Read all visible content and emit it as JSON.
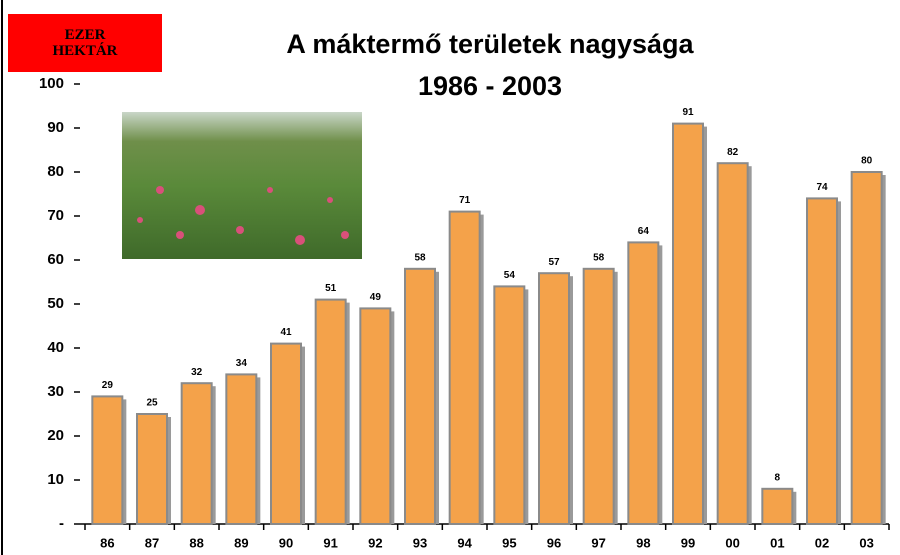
{
  "chart_data": {
    "type": "bar",
    "title": "A máktermő területek nagysága",
    "subtitle": "1986 - 2003",
    "ylabel": "EZER HEKTÁR",
    "categories": [
      "86",
      "87",
      "88",
      "89",
      "90",
      "91",
      "92",
      "93",
      "94",
      "95",
      "96",
      "97",
      "98",
      "99",
      "00",
      "01",
      "02",
      "03"
    ],
    "values": [
      29,
      25,
      32,
      34,
      41,
      51,
      49,
      58,
      71,
      54,
      57,
      58,
      64,
      91,
      82,
      8,
      74,
      80
    ],
    "color": "#f4a24a",
    "ylim": [
      0,
      100
    ],
    "yticks": [
      {
        "value": 0,
        "label": "-"
      },
      10,
      20,
      30,
      40,
      50,
      60,
      70,
      80,
      90,
      100
    ]
  }
}
